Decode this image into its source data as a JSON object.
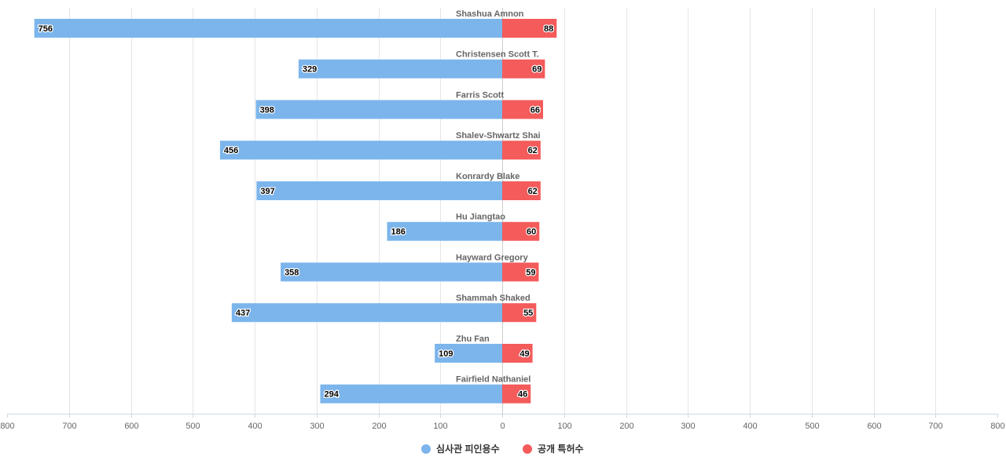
{
  "chart_data": {
    "type": "bar",
    "orientation": "horizontal-diverging",
    "categories": [
      "Shashua Amnon",
      "Christensen Scott T.",
      "Farris Scott",
      "Shalev-Shwartz Shai",
      "Konrardy Blake",
      "Hu Jiangtao",
      "Hayward Gregory",
      "Shammah Shaked",
      "Zhu Fan",
      "Fairfield Nathaniel"
    ],
    "series": [
      {
        "name": "심사관 피인용수",
        "color": "#7cb5ec",
        "side": "left",
        "values": [
          756,
          329,
          398,
          456,
          397,
          186,
          358,
          437,
          109,
          294
        ]
      },
      {
        "name": "공개 특허수",
        "color": "#f45b5b",
        "side": "right",
        "values": [
          88,
          69,
          66,
          62,
          62,
          60,
          59,
          55,
          49,
          46
        ]
      }
    ],
    "xlim": [
      -800,
      800
    ],
    "ticks": [
      -800,
      -700,
      -600,
      -500,
      -400,
      -300,
      -200,
      -100,
      0,
      100,
      200,
      300,
      400,
      500,
      600,
      700,
      800
    ],
    "tick_labels": [
      "800",
      "700",
      "600",
      "500",
      "400",
      "300",
      "200",
      "100",
      "0",
      "100",
      "200",
      "300",
      "400",
      "500",
      "600",
      "700",
      "800"
    ],
    "grid": true,
    "legend_position": "bottom-center",
    "title": "",
    "xlabel": "",
    "ylabel": ""
  }
}
